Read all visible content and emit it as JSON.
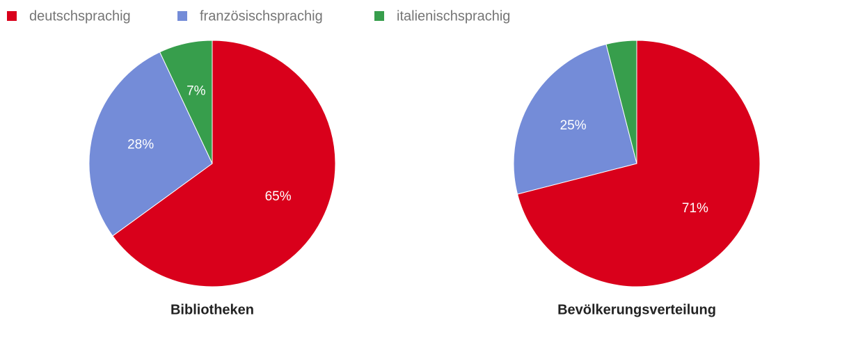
{
  "legend": {
    "labels": [
      "deutschsprachig",
      "französischsprachig",
      "italienischsprachig"
    ],
    "colors": [
      "#d9001b",
      "#748cd8",
      "#379e4c"
    ]
  },
  "chart_data": [
    {
      "type": "pie",
      "title": "Bibliotheken",
      "values": [
        65,
        28,
        7
      ],
      "value_labels": [
        "65%",
        "28%",
        "7%"
      ],
      "colors": [
        "#d9001b",
        "#748cd8",
        "#379e4c"
      ]
    },
    {
      "type": "pie",
      "title": "Bevölkerungsverteilung",
      "values": [
        71,
        25,
        4
      ],
      "value_labels": [
        "71%",
        "25%",
        null
      ],
      "colors": [
        "#d9001b",
        "#748cd8",
        "#379e4c"
      ]
    }
  ]
}
